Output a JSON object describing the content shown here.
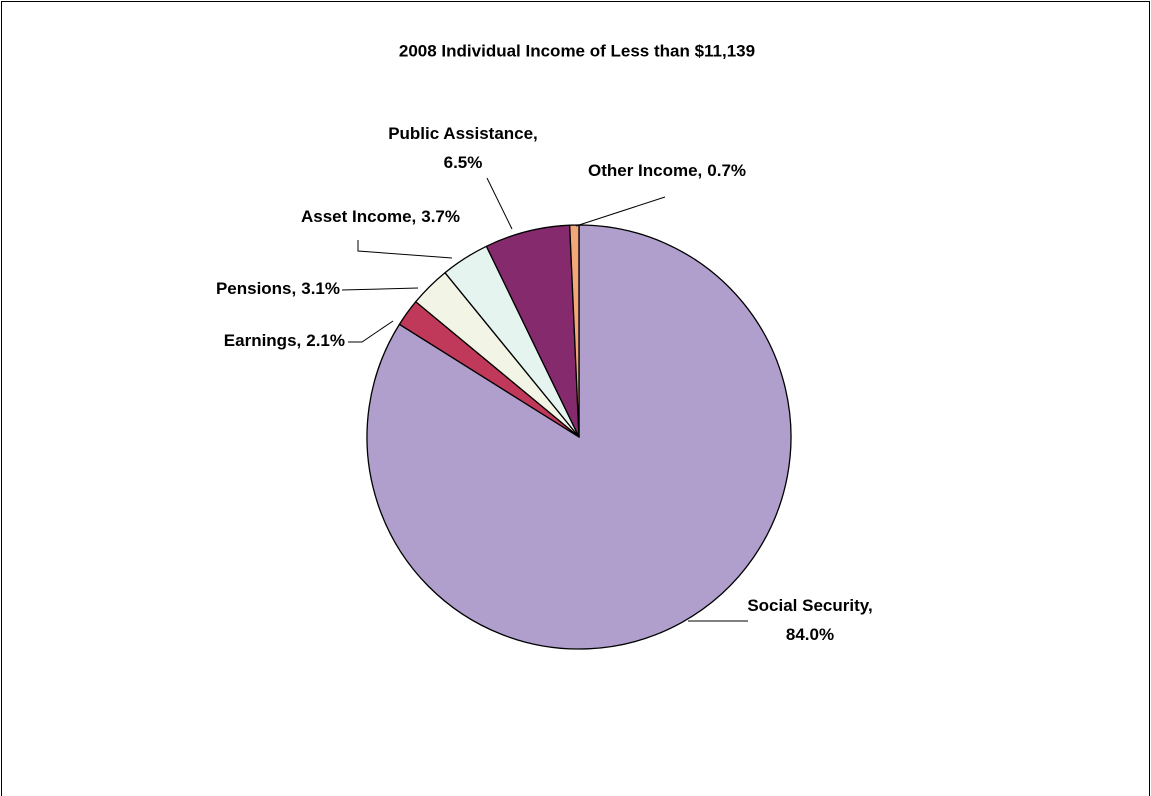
{
  "chart_data": {
    "type": "pie",
    "title": "2008 Individual Income of Less than $11,139",
    "categories": [
      "Social Security,",
      "Earnings,",
      "Pensions,",
      "Asset Income,",
      "Public Assistance,",
      "Other Income,"
    ],
    "values": [
      84.0,
      2.1,
      3.1,
      3.7,
      6.5,
      0.7
    ],
    "value_labels": [
      "84.0%",
      "2.1%",
      "3.1%",
      "3.7%",
      "6.5%",
      "0.7%"
    ],
    "colors": [
      "#b09fcc",
      "#c0395a",
      "#f2f5e6",
      "#e6f4f0",
      "#862a6e",
      "#f2a77a"
    ]
  }
}
